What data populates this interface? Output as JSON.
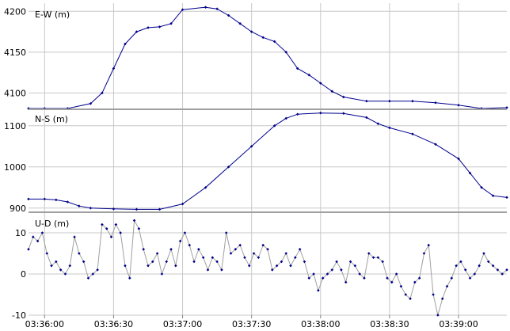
{
  "chart_data": {
    "type": "line",
    "marker": "diamond",
    "grid": true,
    "x_ticks": [
      "03:36:00",
      "03:36:30",
      "03:37:00",
      "03:37:30",
      "03:38:00",
      "03:38:30",
      "03:39:00"
    ],
    "x_range": [
      "03:35:53",
      "03:39:21"
    ],
    "panels": [
      {
        "label": "E-W (m)",
        "color": "#00008b",
        "line_color": "#00008b",
        "ylim": [
          4080,
          4210
        ],
        "y_ticks": [
          4100,
          4150,
          4200
        ],
        "points": [
          [
            "03:35:53",
            4081
          ],
          [
            "03:36:00",
            4081
          ],
          [
            "03:36:10",
            4081
          ],
          [
            "03:36:20",
            4087
          ],
          [
            "03:36:25",
            4100
          ],
          [
            "03:36:30",
            4130
          ],
          [
            "03:36:35",
            4160
          ],
          [
            "03:36:40",
            4175
          ],
          [
            "03:36:45",
            4180
          ],
          [
            "03:36:50",
            4181
          ],
          [
            "03:36:55",
            4185
          ],
          [
            "03:37:00",
            4202
          ],
          [
            "03:37:10",
            4205
          ],
          [
            "03:37:15",
            4203
          ],
          [
            "03:37:20",
            4195
          ],
          [
            "03:37:25",
            4185
          ],
          [
            "03:37:30",
            4175
          ],
          [
            "03:37:35",
            4168
          ],
          [
            "03:37:40",
            4163
          ],
          [
            "03:37:45",
            4150
          ],
          [
            "03:37:50",
            4130
          ],
          [
            "03:37:55",
            4122
          ],
          [
            "03:38:00",
            4112
          ],
          [
            "03:38:05",
            4102
          ],
          [
            "03:38:10",
            4095
          ],
          [
            "03:38:20",
            4090
          ],
          [
            "03:38:30",
            4090
          ],
          [
            "03:38:40",
            4090
          ],
          [
            "03:38:50",
            4088
          ],
          [
            "03:39:00",
            4085
          ],
          [
            "03:39:10",
            4081
          ],
          [
            "03:39:21",
            4082
          ]
        ]
      },
      {
        "label": "N-S (m)",
        "color": "#00008b",
        "line_color": "#00008b",
        "ylim": [
          890,
          1140
        ],
        "y_ticks": [
          900,
          1000,
          1100
        ],
        "points": [
          [
            "03:35:53",
            922
          ],
          [
            "03:36:00",
            922
          ],
          [
            "03:36:05",
            920
          ],
          [
            "03:36:10",
            915
          ],
          [
            "03:36:15",
            905
          ],
          [
            "03:36:20",
            900
          ],
          [
            "03:36:30",
            898
          ],
          [
            "03:36:40",
            897
          ],
          [
            "03:36:50",
            897
          ],
          [
            "03:37:00",
            910
          ],
          [
            "03:37:10",
            950
          ],
          [
            "03:37:20",
            1000
          ],
          [
            "03:37:30",
            1050
          ],
          [
            "03:37:40",
            1100
          ],
          [
            "03:37:45",
            1118
          ],
          [
            "03:37:50",
            1128
          ],
          [
            "03:38:00",
            1131
          ],
          [
            "03:38:10",
            1130
          ],
          [
            "03:38:20",
            1120
          ],
          [
            "03:38:25",
            1105
          ],
          [
            "03:38:30",
            1095
          ],
          [
            "03:38:40",
            1080
          ],
          [
            "03:38:50",
            1055
          ],
          [
            "03:39:00",
            1020
          ],
          [
            "03:39:05",
            985
          ],
          [
            "03:39:10",
            950
          ],
          [
            "03:39:15",
            930
          ],
          [
            "03:39:21",
            926
          ]
        ]
      },
      {
        "label": "U-D (m)",
        "color": "#00008b",
        "line_color": "#a0a0a0",
        "ylim": [
          -10,
          15
        ],
        "y_ticks": [
          -10,
          0,
          10
        ],
        "points": [
          [
            "03:35:53",
            6
          ],
          [
            "03:35:55",
            9
          ],
          [
            "03:35:57",
            8
          ],
          [
            "03:35:59",
            10
          ],
          [
            "03:36:01",
            5
          ],
          [
            "03:36:03",
            2
          ],
          [
            "03:36:05",
            3
          ],
          [
            "03:36:07",
            1
          ],
          [
            "03:36:09",
            0
          ],
          [
            "03:36:11",
            2
          ],
          [
            "03:36:13",
            9
          ],
          [
            "03:36:15",
            5
          ],
          [
            "03:36:17",
            3
          ],
          [
            "03:36:19",
            -1
          ],
          [
            "03:36:21",
            0
          ],
          [
            "03:36:23",
            1
          ],
          [
            "03:36:25",
            12
          ],
          [
            "03:36:27",
            11
          ],
          [
            "03:36:29",
            9
          ],
          [
            "03:36:31",
            12
          ],
          [
            "03:36:33",
            10
          ],
          [
            "03:36:35",
            2
          ],
          [
            "03:36:37",
            -1
          ],
          [
            "03:36:39",
            13
          ],
          [
            "03:36:41",
            11
          ],
          [
            "03:36:43",
            6
          ],
          [
            "03:36:45",
            2
          ],
          [
            "03:36:47",
            3
          ],
          [
            "03:36:49",
            5
          ],
          [
            "03:36:51",
            0
          ],
          [
            "03:36:53",
            3
          ],
          [
            "03:36:55",
            6
          ],
          [
            "03:36:57",
            2
          ],
          [
            "03:36:59",
            8
          ],
          [
            "03:37:01",
            10
          ],
          [
            "03:37:03",
            7
          ],
          [
            "03:37:05",
            3
          ],
          [
            "03:37:07",
            6
          ],
          [
            "03:37:09",
            4
          ],
          [
            "03:37:11",
            1
          ],
          [
            "03:37:13",
            4
          ],
          [
            "03:37:15",
            3
          ],
          [
            "03:37:17",
            1
          ],
          [
            "03:37:19",
            10
          ],
          [
            "03:37:21",
            5
          ],
          [
            "03:37:23",
            6
          ],
          [
            "03:37:25",
            7
          ],
          [
            "03:37:27",
            4
          ],
          [
            "03:37:29",
            2
          ],
          [
            "03:37:31",
            5
          ],
          [
            "03:37:33",
            4
          ],
          [
            "03:37:35",
            7
          ],
          [
            "03:37:37",
            6
          ],
          [
            "03:37:39",
            1
          ],
          [
            "03:37:41",
            2
          ],
          [
            "03:37:43",
            3
          ],
          [
            "03:37:45",
            5
          ],
          [
            "03:37:47",
            2
          ],
          [
            "03:37:49",
            4
          ],
          [
            "03:37:51",
            6
          ],
          [
            "03:37:53",
            3
          ],
          [
            "03:37:55",
            -1
          ],
          [
            "03:37:57",
            0
          ],
          [
            "03:37:59",
            -4
          ],
          [
            "03:38:01",
            -1
          ],
          [
            "03:38:03",
            0
          ],
          [
            "03:38:05",
            1
          ],
          [
            "03:38:07",
            3
          ],
          [
            "03:38:09",
            1
          ],
          [
            "03:38:11",
            -2
          ],
          [
            "03:38:13",
            3
          ],
          [
            "03:38:15",
            2
          ],
          [
            "03:38:17",
            0
          ],
          [
            "03:38:19",
            -1
          ],
          [
            "03:38:21",
            5
          ],
          [
            "03:38:23",
            4
          ],
          [
            "03:38:25",
            4
          ],
          [
            "03:38:27",
            3
          ],
          [
            "03:38:29",
            -1
          ],
          [
            "03:38:31",
            -2
          ],
          [
            "03:38:33",
            0
          ],
          [
            "03:38:35",
            -3
          ],
          [
            "03:38:37",
            -5
          ],
          [
            "03:38:39",
            -6
          ],
          [
            "03:38:41",
            -2
          ],
          [
            "03:38:43",
            -1
          ],
          [
            "03:38:45",
            5
          ],
          [
            "03:38:47",
            7
          ],
          [
            "03:38:49",
            -5
          ],
          [
            "03:38:51",
            -10
          ],
          [
            "03:38:53",
            -6
          ],
          [
            "03:38:55",
            -3
          ],
          [
            "03:38:57",
            -1
          ],
          [
            "03:38:59",
            2
          ],
          [
            "03:39:01",
            3
          ],
          [
            "03:39:03",
            1
          ],
          [
            "03:39:05",
            -1
          ],
          [
            "03:39:07",
            0
          ],
          [
            "03:39:09",
            2
          ],
          [
            "03:39:11",
            5
          ],
          [
            "03:39:13",
            3
          ],
          [
            "03:39:15",
            2
          ],
          [
            "03:39:17",
            1
          ],
          [
            "03:39:19",
            0
          ],
          [
            "03:39:21",
            1
          ]
        ]
      }
    ]
  }
}
